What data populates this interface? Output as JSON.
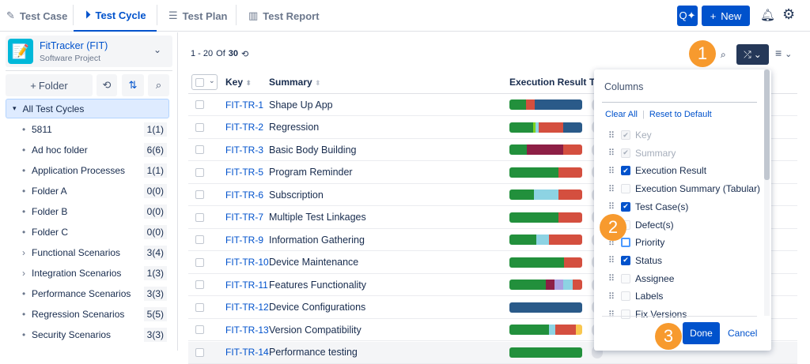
{
  "tabs": [
    {
      "label": "Test Case",
      "icon": "edit-doc-icon"
    },
    {
      "label": "Test Cycle",
      "icon": "play-circle-icon",
      "active": true
    },
    {
      "label": "Test Plan",
      "icon": "list-doc-icon"
    },
    {
      "label": "Test Report",
      "icon": "bar-chart-icon"
    }
  ],
  "header": {
    "new_label": "New",
    "icons": [
      "ai-search-icon",
      "bell-icon",
      "gear-icon"
    ]
  },
  "project": {
    "name": "FitTracker (FIT)",
    "type": "Software Project"
  },
  "sidebar": {
    "folder_label": "Folder",
    "root": "All Test Cycles",
    "folders": [
      {
        "name": "5811",
        "count": "1(1)",
        "expandable": false
      },
      {
        "name": "Ad hoc folder",
        "count": "6(6)",
        "expandable": false
      },
      {
        "name": "Application Processes",
        "count": "1(1)",
        "expandable": false
      },
      {
        "name": "Folder A",
        "count": "0(0)",
        "expandable": false
      },
      {
        "name": "Folder B",
        "count": "0(0)",
        "expandable": false
      },
      {
        "name": "Folder C",
        "count": "0(0)",
        "expandable": false
      },
      {
        "name": "Functional Scenarios",
        "count": "3(4)",
        "expandable": true
      },
      {
        "name": "Integration Scenarios",
        "count": "1(3)",
        "expandable": true
      },
      {
        "name": "Performance Scenarios",
        "count": "3(3)",
        "expandable": false
      },
      {
        "name": "Regression Scenarios",
        "count": "5(5)",
        "expandable": false
      },
      {
        "name": "Security Scenarios",
        "count": "3(3)",
        "expandable": false
      }
    ]
  },
  "pagination": {
    "range": "1 - 20",
    "of": "Of",
    "total": "30"
  },
  "columns": {
    "key": "Key",
    "summary": "Summary",
    "execution": "Execution Result",
    "next": "T"
  },
  "colors": {
    "pass": "#22903c",
    "fail": "#d44f3f",
    "unexecuted": "#2a5a89",
    "blocked": "#8d1f45",
    "wip": "#8dd3e3",
    "lime": "#7ed321",
    "lavender": "#a99fe0",
    "yellow": "#f9c74f",
    "accent": "#0052cc",
    "badge": "#f79a2e"
  },
  "rows": [
    {
      "key": "FIT-TR-1",
      "summary": "Shape Up App",
      "exec": [
        [
          "pass",
          23
        ],
        [
          "fail",
          12
        ],
        [
          "unexecuted",
          65
        ]
      ]
    },
    {
      "key": "FIT-TR-2",
      "summary": "Regression",
      "exec": [
        [
          "pass",
          33
        ],
        [
          "lime",
          3
        ],
        [
          "wip",
          4
        ],
        [
          "fail",
          34
        ],
        [
          "unexecuted",
          26
        ]
      ]
    },
    {
      "key": "FIT-TR-3",
      "summary": "Basic Body Building",
      "exec": [
        [
          "pass",
          24
        ],
        [
          "blocked",
          50
        ],
        [
          "fail",
          26
        ]
      ]
    },
    {
      "key": "FIT-TR-5",
      "summary": "Program Reminder",
      "exec": [
        [
          "pass",
          67
        ],
        [
          "fail",
          33
        ]
      ]
    },
    {
      "key": "FIT-TR-6",
      "summary": "Subscription",
      "exec": [
        [
          "pass",
          34
        ],
        [
          "wip",
          33
        ],
        [
          "fail",
          33
        ]
      ]
    },
    {
      "key": "FIT-TR-7",
      "summary": "Multiple Test Linkages",
      "exec": [
        [
          "pass",
          67
        ],
        [
          "fail",
          33
        ]
      ]
    },
    {
      "key": "FIT-TR-9",
      "summary": "Information Gathering",
      "exec": [
        [
          "pass",
          37
        ],
        [
          "wip",
          17
        ],
        [
          "fail",
          46
        ]
      ]
    },
    {
      "key": "FIT-TR-10",
      "summary": "Device Maintenance",
      "exec": [
        [
          "pass",
          75
        ],
        [
          "fail",
          25
        ]
      ]
    },
    {
      "key": "FIT-TR-11",
      "summary": "Features Functionality",
      "exec": [
        [
          "pass",
          50
        ],
        [
          "blocked",
          12
        ],
        [
          "lavender",
          12
        ],
        [
          "wip",
          13
        ],
        [
          "fail",
          13
        ]
      ]
    },
    {
      "key": "FIT-TR-12",
      "summary": "Device Configurations",
      "exec": [
        [
          "unexecuted",
          100
        ]
      ]
    },
    {
      "key": "FIT-TR-13",
      "summary": "Version Compatibility",
      "exec": [
        [
          "pass",
          54
        ],
        [
          "wip",
          9
        ],
        [
          "fail",
          28
        ],
        [
          "yellow",
          9
        ]
      ]
    },
    {
      "key": "FIT-TR-14",
      "summary": "Performance testing",
      "exec": [
        [
          "pass",
          100
        ]
      ]
    }
  ],
  "columns_panel": {
    "title": "Columns",
    "clear_all": "Clear All",
    "reset": "Reset to Default",
    "done": "Done",
    "cancel": "Cancel",
    "items": [
      {
        "label": "Key",
        "state": "disabled"
      },
      {
        "label": "Summary",
        "state": "disabled"
      },
      {
        "label": "Execution Result",
        "state": "checked"
      },
      {
        "label": "Execution Summary (Tabular)",
        "state": "unchecked"
      },
      {
        "label": "Test Case(s)",
        "state": "checked"
      },
      {
        "label": "Defect(s)",
        "state": "unchecked"
      },
      {
        "label": "Priority",
        "state": "focused"
      },
      {
        "label": "Status",
        "state": "checked"
      },
      {
        "label": "Assignee",
        "state": "unchecked"
      },
      {
        "label": "Labels",
        "state": "unchecked"
      },
      {
        "label": "Fix Versions",
        "state": "unchecked"
      }
    ]
  },
  "badges": [
    "1",
    "2",
    "3"
  ]
}
